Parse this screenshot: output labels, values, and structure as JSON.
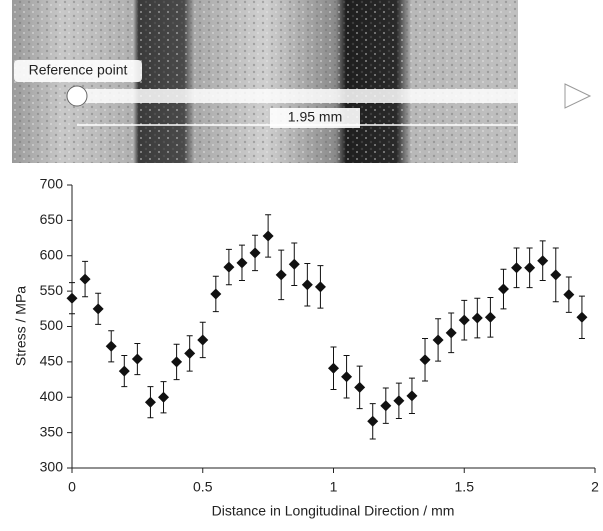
{
  "micrograph": {
    "reference_label": "Reference point",
    "distance_label": "1.95 mm"
  },
  "chart_data": {
    "type": "scatter",
    "x_label": "Distance in Longitudinal Direction / mm",
    "y_label": "Stress / MPa",
    "color": "#111111",
    "x": [
      0,
      0.05,
      0.1,
      0.15,
      0.2,
      0.25,
      0.3,
      0.35,
      0.4,
      0.45,
      0.5,
      0.55,
      0.6,
      0.65,
      0.7,
      0.75,
      0.8,
      0.85,
      0.9,
      0.95,
      1,
      1.05,
      1.1,
      1.15,
      1.2,
      1.25,
      1.3,
      1.35,
      1.4,
      1.45,
      1.5,
      1.55,
      1.6,
      1.65,
      1.7,
      1.75,
      1.8,
      1.85,
      1.9,
      1.95
    ],
    "values": [
      540,
      567,
      525,
      472,
      437,
      454,
      393,
      400,
      450,
      462,
      481,
      546,
      584,
      590,
      604,
      628,
      573,
      588,
      559,
      556,
      441,
      429,
      414,
      366,
      388,
      395,
      402,
      453,
      481,
      491,
      509,
      512,
      513,
      553,
      583,
      583,
      593,
      573,
      545,
      513
    ],
    "errors": [
      22,
      25,
      22,
      22,
      22,
      22,
      22,
      22,
      25,
      25,
      25,
      25,
      25,
      25,
      25,
      30,
      35,
      30,
      30,
      30,
      30,
      30,
      30,
      25,
      25,
      25,
      25,
      30,
      30,
      28,
      28,
      28,
      28,
      28,
      28,
      28,
      28,
      38,
      25,
      30
    ],
    "xlim": [
      0,
      2
    ],
    "xticks": [
      0,
      0.5,
      1,
      1.5,
      2
    ],
    "ylim": [
      300,
      700
    ],
    "yticks": [
      300,
      350,
      400,
      450,
      500,
      550,
      600,
      650,
      700
    ]
  }
}
